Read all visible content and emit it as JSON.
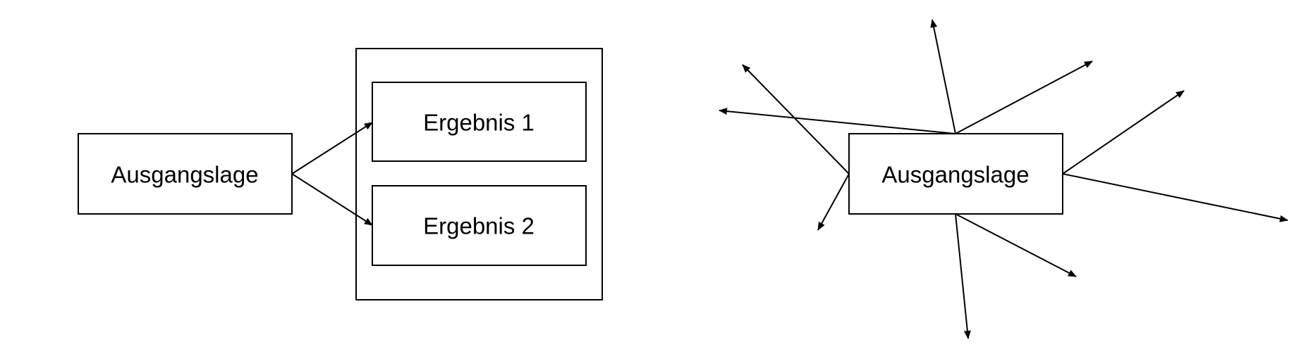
{
  "left_diagram": {
    "source_label": "Ausgangslage",
    "results": [
      {
        "label": "Ergebnis 1"
      },
      {
        "label": "Ergebnis 2"
      }
    ]
  },
  "right_diagram": {
    "source_label": "Ausgangslage",
    "outgoing_arrow_count": 9
  },
  "colors": {
    "stroke": "#000000",
    "background": "#ffffff"
  }
}
